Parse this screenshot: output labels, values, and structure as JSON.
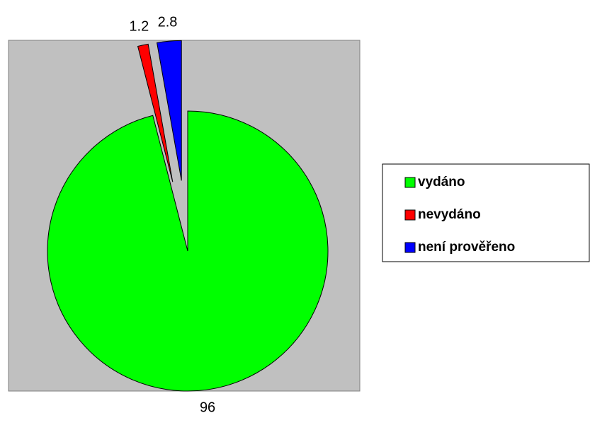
{
  "chart_data": {
    "type": "pie",
    "categories": [
      "vydáno",
      "nevydáno",
      "není prověřeno"
    ],
    "values": [
      96,
      1.2,
      2.8
    ],
    "colors": [
      "#00ff00",
      "#ff0000",
      "#0000ff"
    ],
    "legend": "right"
  }
}
